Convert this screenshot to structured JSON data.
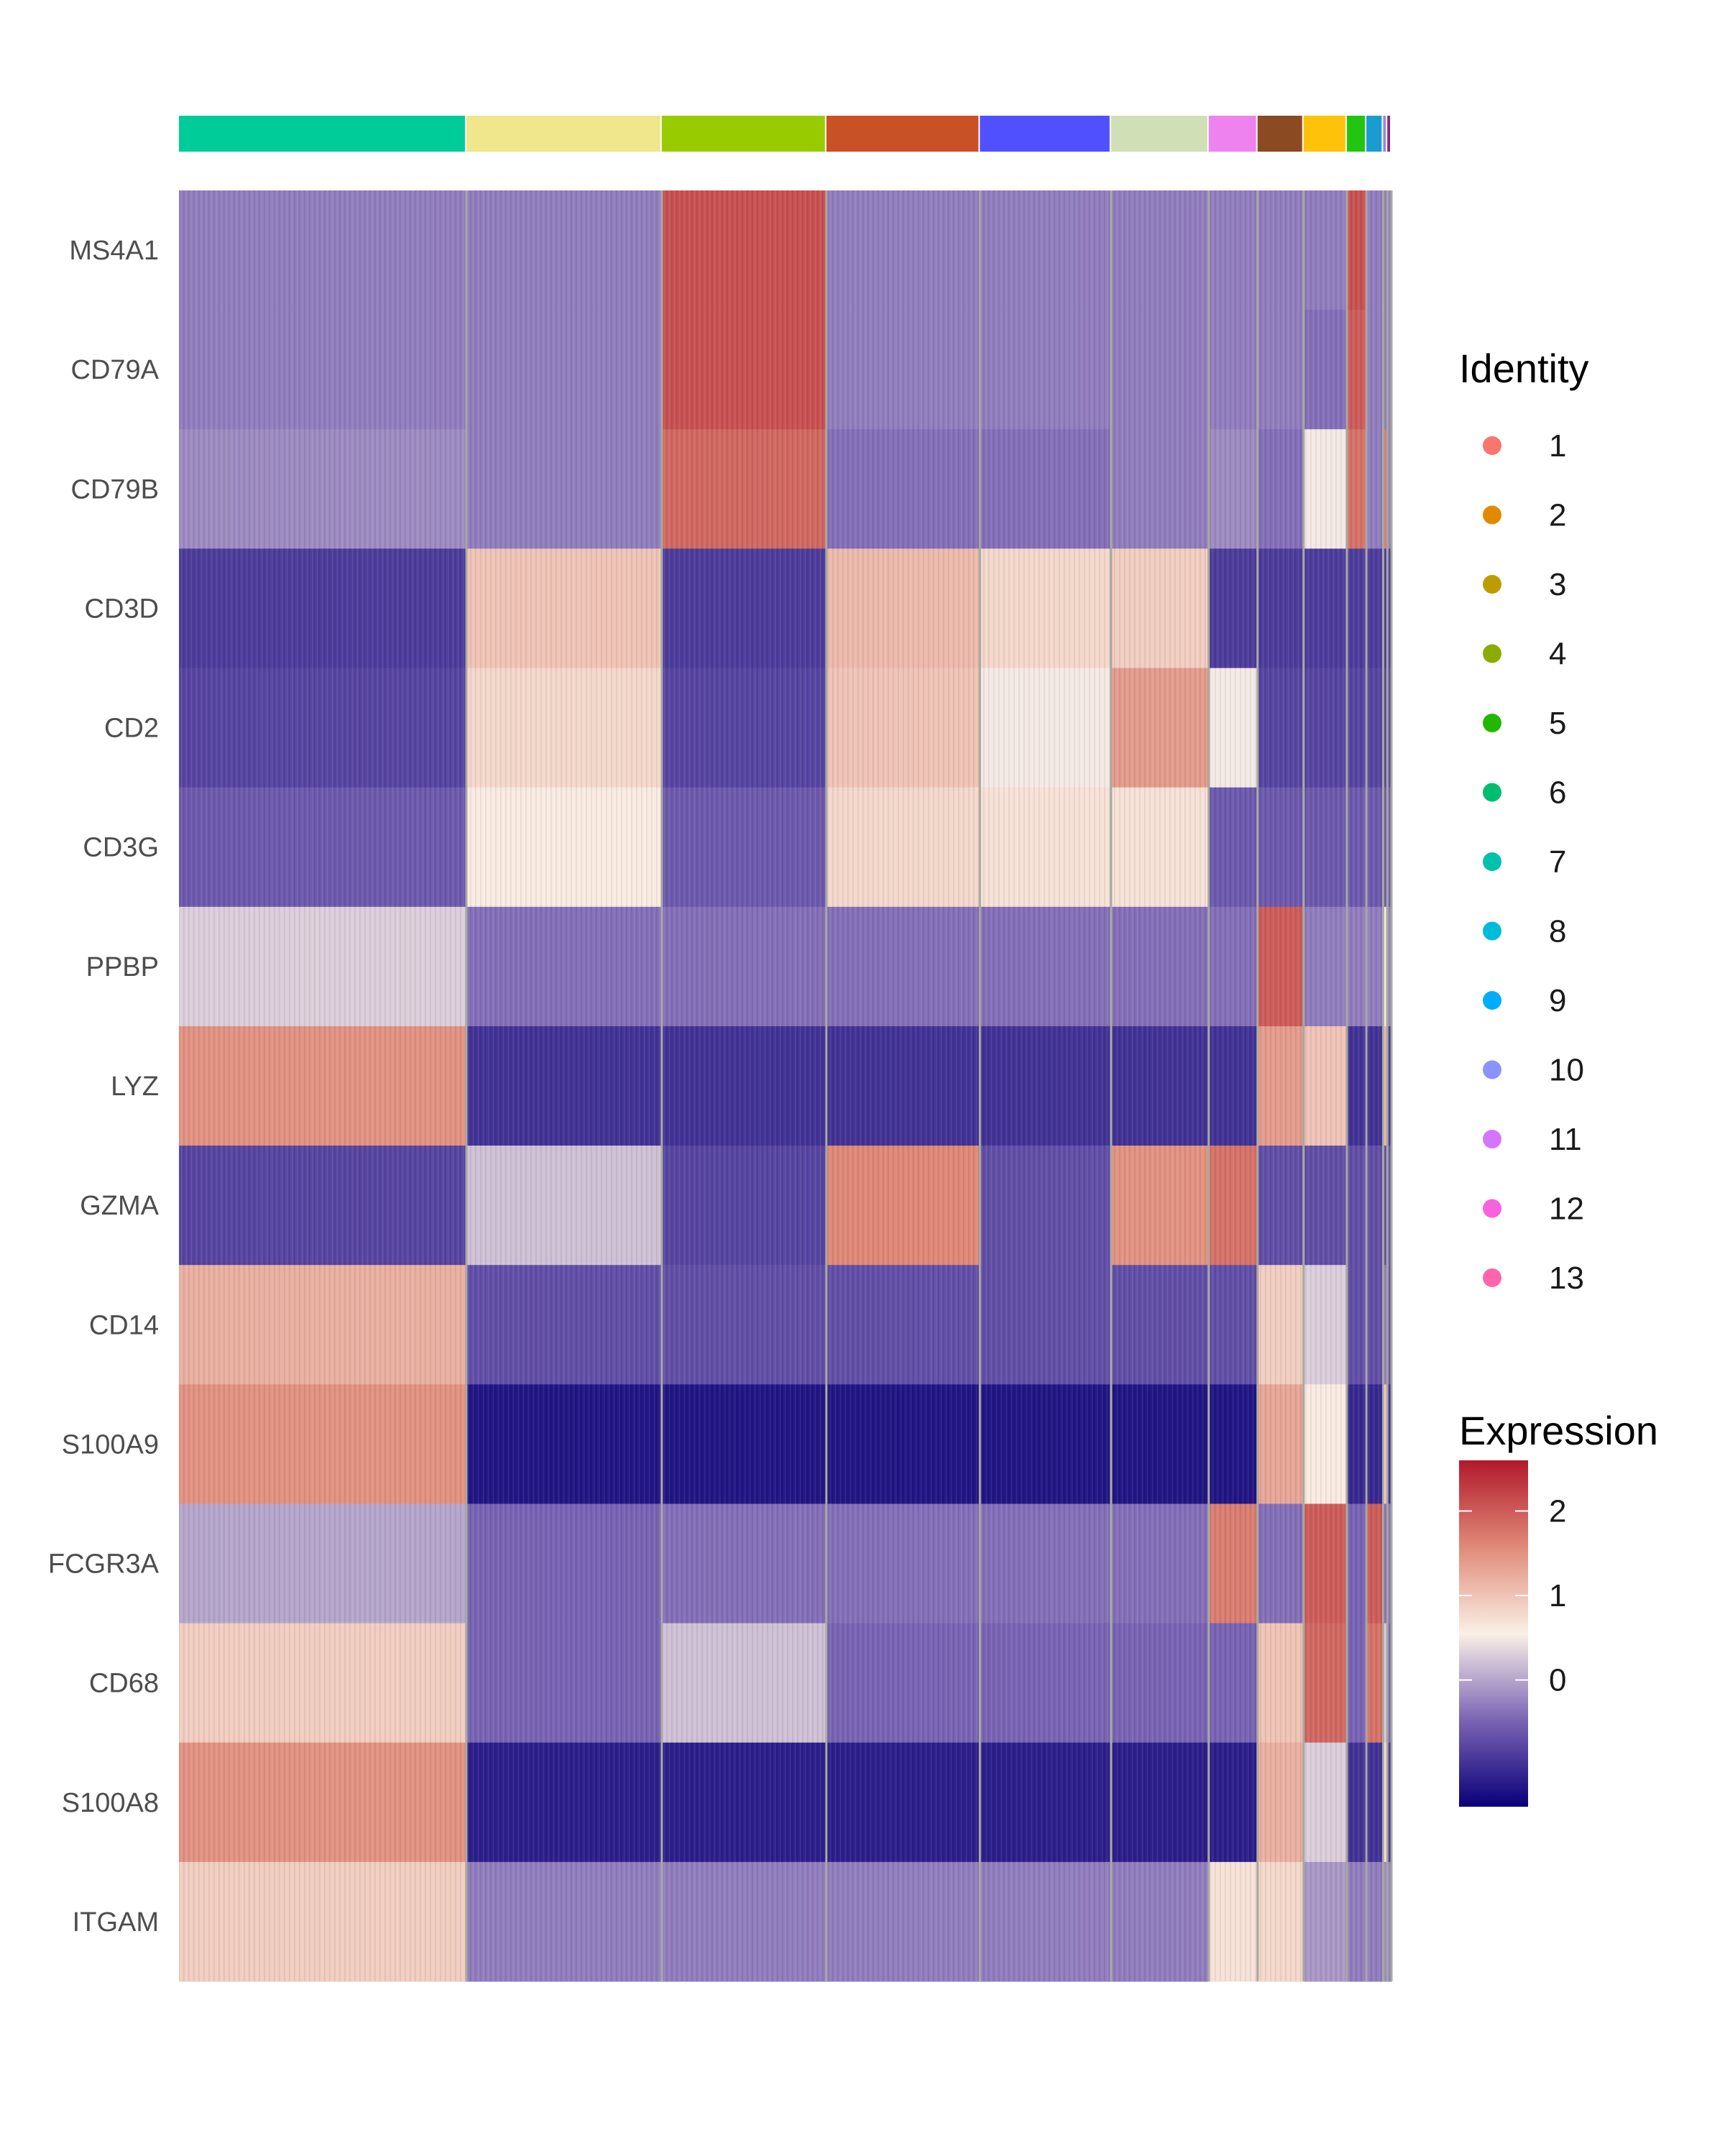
{
  "chart_data": {
    "type": "heatmap",
    "genes": [
      "MS4A1",
      "CD79A",
      "CD79B",
      "CD3D",
      "CD2",
      "CD3G",
      "PPBP",
      "LYZ",
      "GZMA",
      "CD14",
      "S100A9",
      "FCGR3A",
      "CD68",
      "S100A8",
      "ITGAM"
    ],
    "identity_bar": [
      {
        "color": "#00CC99",
        "weight": 206
      },
      {
        "color": "#F0E68C",
        "weight": 140
      },
      {
        "color": "#99CC00",
        "weight": 118
      },
      {
        "color": "#C85125",
        "weight": 110
      },
      {
        "color": "#5050FF",
        "weight": 94
      },
      {
        "color": "#D0DFB5",
        "weight": 70
      },
      {
        "color": "#EE82EE",
        "weight": 35
      },
      {
        "color": "#8B4A22",
        "weight": 33
      },
      {
        "color": "#FFC20A",
        "weight": 31
      },
      {
        "color": "#22C511",
        "weight": 14
      },
      {
        "color": "#1A9BD2",
        "weight": 12
      },
      {
        "color": "#9988DD",
        "weight": 3
      },
      {
        "color": "#7F2A7F",
        "weight": 3
      }
    ],
    "expression": [
      [
        -0.3,
        -0.3,
        2.1,
        -0.3,
        -0.3,
        -0.3,
        -0.3,
        -0.3,
        -0.3,
        2.1,
        -0.3,
        -0.3,
        -0.3
      ],
      [
        -0.3,
        -0.3,
        2.1,
        -0.3,
        -0.3,
        -0.3,
        -0.3,
        -0.3,
        -0.4,
        2.0,
        -0.3,
        -0.3,
        -0.3
      ],
      [
        -0.2,
        -0.3,
        1.9,
        -0.4,
        -0.4,
        -0.3,
        -0.2,
        -0.4,
        0.5,
        1.8,
        -0.3,
        1.7,
        -0.3
      ],
      [
        -0.9,
        1.0,
        -0.9,
        1.1,
        0.8,
        0.9,
        -0.9,
        -0.9,
        -0.9,
        -0.9,
        -0.9,
        -0.9,
        -0.9
      ],
      [
        -0.8,
        0.8,
        -0.8,
        1.0,
        0.5,
        1.4,
        0.5,
        -0.8,
        -0.8,
        -0.8,
        -0.8,
        -0.8,
        -0.8
      ],
      [
        -0.6,
        0.6,
        -0.6,
        0.8,
        0.7,
        0.7,
        -0.6,
        -0.6,
        -0.6,
        -0.6,
        -0.6,
        -0.6,
        -0.6
      ],
      [
        0.3,
        -0.4,
        -0.4,
        -0.4,
        -0.4,
        -0.4,
        -0.4,
        2.0,
        -0.3,
        -0.3,
        -0.3,
        0.5,
        -0.3
      ],
      [
        1.5,
        -1.0,
        -1.0,
        -1.0,
        -1.0,
        -1.0,
        -1.0,
        1.4,
        1.0,
        -1.0,
        -1.0,
        1.1,
        -1.0
      ],
      [
        -0.8,
        0.2,
        -0.8,
        1.6,
        -0.7,
        1.5,
        1.8,
        -0.7,
        -0.7,
        -0.7,
        -0.7,
        -0.7,
        -0.7
      ],
      [
        1.2,
        -0.7,
        -0.7,
        -0.7,
        -0.7,
        -0.7,
        -0.7,
        0.9,
        0.3,
        -0.7,
        -0.7,
        -0.3,
        -0.7
      ],
      [
        1.5,
        -1.3,
        -1.3,
        -1.3,
        -1.3,
        -1.3,
        -1.3,
        1.3,
        0.6,
        -1.1,
        -1.1,
        0.9,
        -1.1
      ],
      [
        0.0,
        -0.5,
        -0.4,
        -0.4,
        -0.4,
        -0.4,
        1.7,
        -0.4,
        2.0,
        -0.5,
        2.0,
        -0.4,
        -0.4
      ],
      [
        0.9,
        -0.5,
        0.2,
        -0.5,
        -0.5,
        -0.5,
        -0.5,
        1.0,
        1.9,
        -0.5,
        1.8,
        0.3,
        -0.5
      ],
      [
        1.5,
        -1.2,
        -1.2,
        -1.2,
        -1.2,
        -1.2,
        -1.2,
        1.2,
        0.3,
        -1.0,
        -1.0,
        0.7,
        -1.0
      ],
      [
        0.9,
        -0.3,
        -0.3,
        -0.3,
        -0.3,
        -0.3,
        0.7,
        0.8,
        -0.1,
        -0.3,
        -0.3,
        -0.2,
        -0.3
      ]
    ],
    "legend_identity": {
      "title": "Identity",
      "items": [
        {
          "label": "1",
          "color": "#F8766D"
        },
        {
          "label": "2",
          "color": "#E18A00"
        },
        {
          "label": "3",
          "color": "#BE9C00"
        },
        {
          "label": "4",
          "color": "#8CAB00"
        },
        {
          "label": "5",
          "color": "#24B700"
        },
        {
          "label": "6",
          "color": "#00BE70"
        },
        {
          "label": "7",
          "color": "#00C1AB"
        },
        {
          "label": "8",
          "color": "#00BBDA"
        },
        {
          "label": "9",
          "color": "#00ACFC"
        },
        {
          "label": "10",
          "color": "#8B93FF"
        },
        {
          "label": "11",
          "color": "#D575FE"
        },
        {
          "label": "12",
          "color": "#F962DD"
        },
        {
          "label": "13",
          "color": "#FF65AC"
        }
      ]
    },
    "legend_expression": {
      "title": "Expression",
      "ticks": [
        "2",
        "1",
        "0"
      ],
      "tick_values": [
        2,
        1,
        0
      ],
      "range": [
        -1.5,
        2.6
      ],
      "gradient": [
        "#0A0078",
        "#7A64B4",
        "#FAF0E6",
        "#E08A78",
        "#B2182B"
      ]
    }
  }
}
